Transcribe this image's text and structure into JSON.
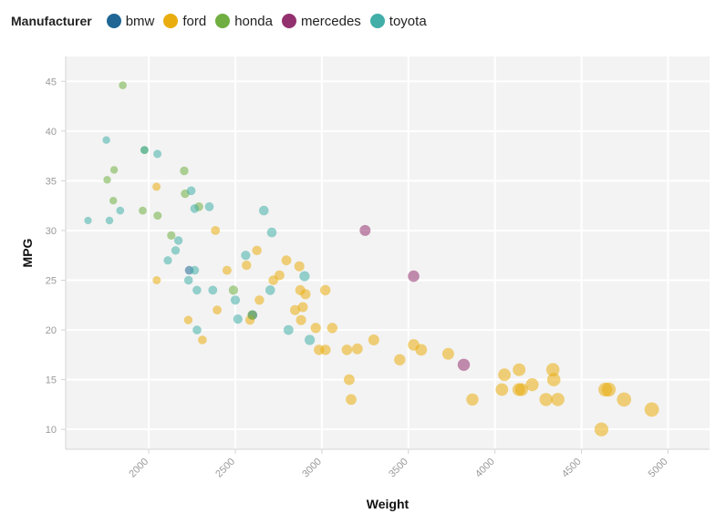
{
  "chart_data": {
    "type": "scatter",
    "title": "",
    "xlabel": "Weight",
    "ylabel": "MPG",
    "xlim": [
      1520,
      5240
    ],
    "ylim": [
      8,
      47.5
    ],
    "x_ticks": [
      2000,
      2500,
      3000,
      3500,
      4000,
      4500,
      5000
    ],
    "y_ticks": [
      10,
      15,
      20,
      25,
      30,
      35,
      40,
      45
    ],
    "grid": true,
    "legend": {
      "title": "Manufacturer",
      "placement": "top-left"
    },
    "size_encodes": "Weight",
    "series": [
      {
        "name": "bmw",
        "color": "#1f6694",
        "points": [
          [
            2234,
            26
          ],
          [
            2600,
            21.5
          ]
        ]
      },
      {
        "name": "ford",
        "color": "#e9ad0e",
        "points": [
          [
            2045,
            34.4
          ],
          [
            2046,
            25
          ],
          [
            2228,
            21
          ],
          [
            2310,
            19
          ],
          [
            2385,
            30
          ],
          [
            2395,
            22
          ],
          [
            2452,
            26
          ],
          [
            2565,
            26.5
          ],
          [
            2585,
            21
          ],
          [
            2625,
            28
          ],
          [
            2639,
            23
          ],
          [
            2720,
            25
          ],
          [
            2755,
            25.5
          ],
          [
            2795,
            27
          ],
          [
            2845,
            22
          ],
          [
            2870,
            26.4
          ],
          [
            2875,
            24
          ],
          [
            2880,
            21
          ],
          [
            2890,
            22.3
          ],
          [
            2905,
            23.6
          ],
          [
            2965,
            20.2
          ],
          [
            2984,
            18
          ],
          [
            3021,
            18
          ],
          [
            3020,
            24
          ],
          [
            3060,
            20.2
          ],
          [
            3145,
            18
          ],
          [
            3158,
            15
          ],
          [
            3169,
            13
          ],
          [
            3205,
            18.1
          ],
          [
            3300,
            19
          ],
          [
            3450,
            17
          ],
          [
            3530,
            18.5
          ],
          [
            3574,
            18
          ],
          [
            3730,
            17.6
          ],
          [
            3870,
            13
          ],
          [
            4040,
            14
          ],
          [
            4055,
            15.5
          ],
          [
            4138,
            14
          ],
          [
            4140,
            16
          ],
          [
            4154,
            14
          ],
          [
            4215,
            14.5
          ],
          [
            4295,
            13
          ],
          [
            4335,
            16
          ],
          [
            4340,
            15
          ],
          [
            4363,
            13
          ],
          [
            4615,
            10
          ],
          [
            4638,
            14
          ],
          [
            4657,
            14
          ],
          [
            4746,
            13
          ],
          [
            4906,
            12
          ]
        ]
      },
      {
        "name": "honda",
        "color": "#70ae41",
        "points": [
          [
            1760,
            35.1
          ],
          [
            1795,
            33
          ],
          [
            1800,
            36.1
          ],
          [
            1850,
            44.6
          ],
          [
            1965,
            32
          ],
          [
            1975,
            38.1
          ],
          [
            2051,
            31.5
          ],
          [
            2130,
            29.5
          ],
          [
            2205,
            36
          ],
          [
            2210,
            33.7
          ],
          [
            2290,
            32.4
          ],
          [
            2489,
            24
          ],
          [
            2597,
            21.5
          ]
        ]
      },
      {
        "name": "mercedes",
        "color": "#93316f",
        "points": [
          [
            3250,
            30
          ],
          [
            3530,
            25.4
          ],
          [
            3820,
            16.5
          ]
        ]
      },
      {
        "name": "toyota",
        "color": "#41aea8",
        "points": [
          [
            1649,
            31
          ],
          [
            1755,
            39.1
          ],
          [
            1773,
            31
          ],
          [
            1835,
            32
          ],
          [
            1975,
            38.1
          ],
          [
            2050,
            37.7
          ],
          [
            2110,
            27
          ],
          [
            2155,
            28
          ],
          [
            2171,
            29
          ],
          [
            2230,
            25
          ],
          [
            2245,
            34
          ],
          [
            2265,
            26
          ],
          [
            2265,
            32.2
          ],
          [
            2279,
            20
          ],
          [
            2278,
            24
          ],
          [
            2350,
            32.4
          ],
          [
            2370,
            24
          ],
          [
            2500,
            23
          ],
          [
            2515,
            21.1
          ],
          [
            2560,
            27.5
          ],
          [
            2665,
            32
          ],
          [
            2702,
            24
          ],
          [
            2711,
            29.8
          ],
          [
            2807,
            20
          ],
          [
            2900,
            25.4
          ],
          [
            2930,
            19
          ]
        ]
      }
    ]
  }
}
